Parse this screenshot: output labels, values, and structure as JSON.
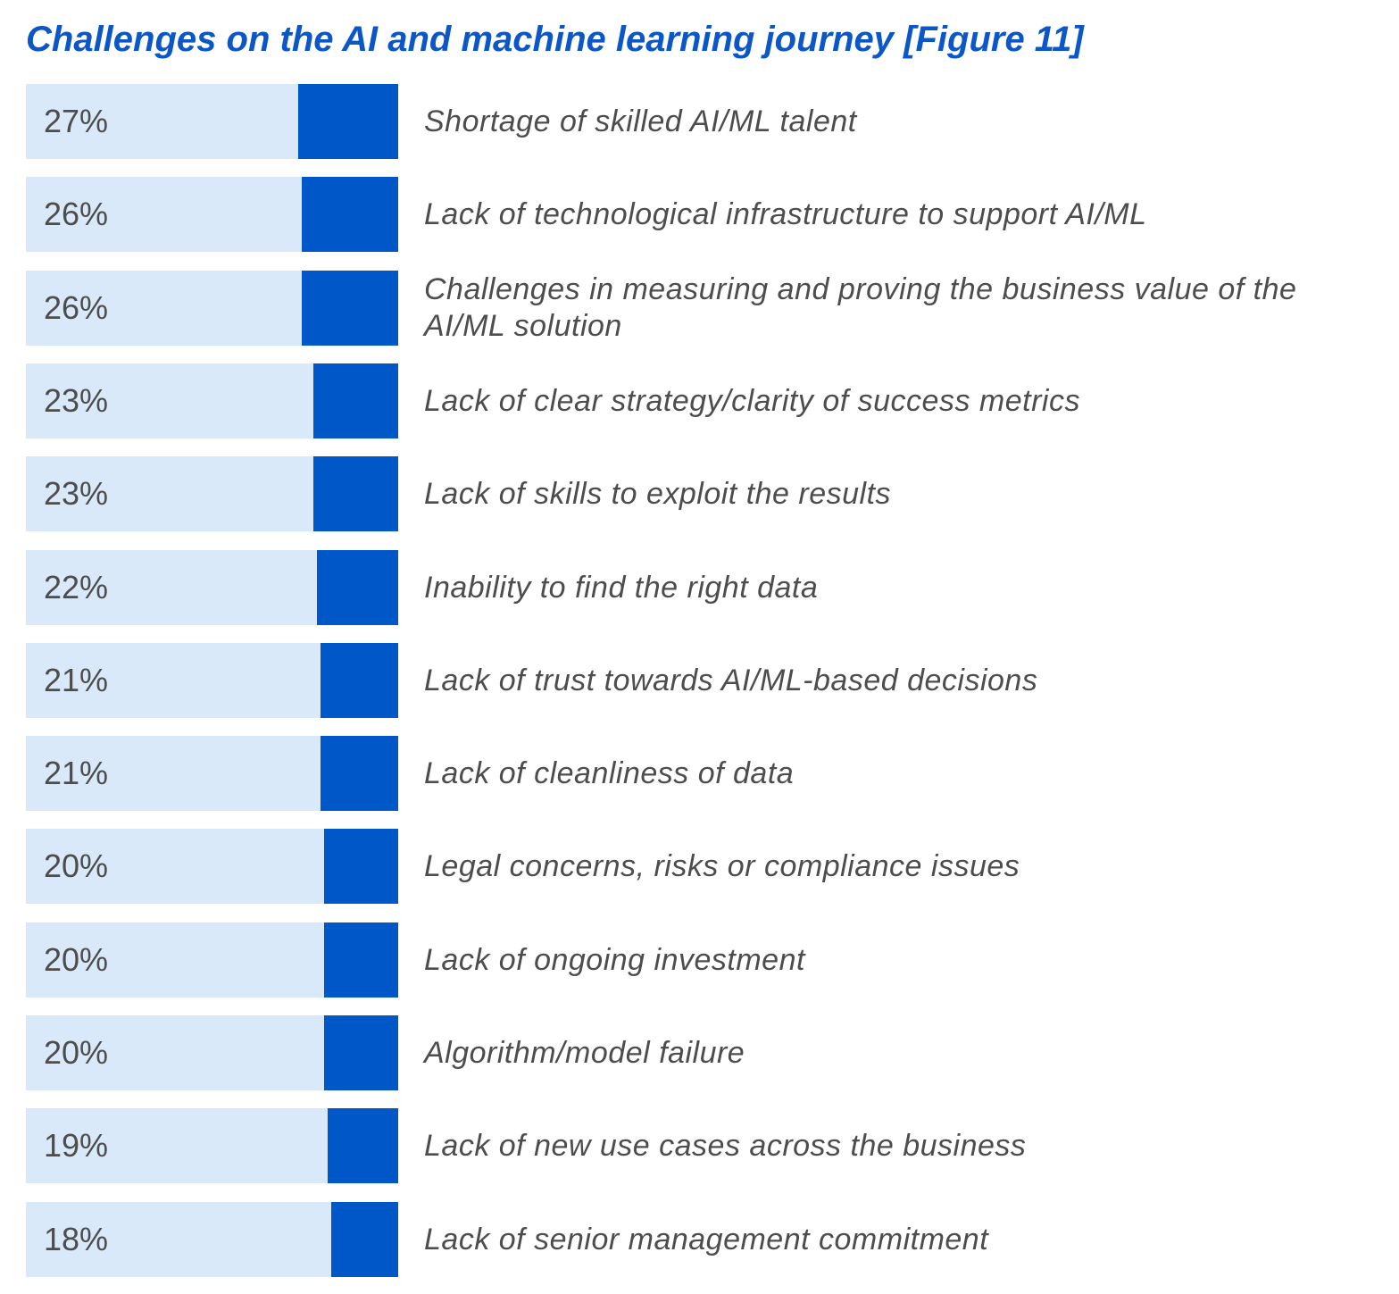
{
  "chart_data": {
    "type": "bar",
    "orientation": "horizontal",
    "title": "Challenges on the AI and machine learning journey [Figure 11]",
    "categories": [
      "Shortage of skilled AI/ML talent",
      "Lack of technological infrastructure to support AI/ML",
      "Challenges in measuring and proving the business value of the AI/ML solution",
      "Lack of clear strategy/clarity of success metrics",
      "Lack of skills to exploit the results",
      "Inability to find the right data",
      "Lack of trust towards AI/ML-based decisions",
      "Lack of cleanliness of data",
      "Legal concerns, risks or compliance issues",
      "Lack of ongoing investment",
      "Algorithm/model failure",
      "Lack of new use cases across the business",
      "Lack of senior management commitment"
    ],
    "values": [
      27,
      26,
      26,
      23,
      23,
      22,
      21,
      21,
      20,
      20,
      20,
      19,
      18
    ],
    "value_labels": [
      "27%",
      "26%",
      "26%",
      "23%",
      "23%",
      "22%",
      "21%",
      "21%",
      "20%",
      "20%",
      "20%",
      "19%",
      "18%"
    ],
    "unit": "%",
    "xlim": [
      0,
      100
    ],
    "grid": false,
    "legend": "none",
    "colors": {
      "bar": "#0057c8",
      "track": "#d9e9f9",
      "title": "#0b57c7",
      "text": "#4d4d4d"
    }
  }
}
